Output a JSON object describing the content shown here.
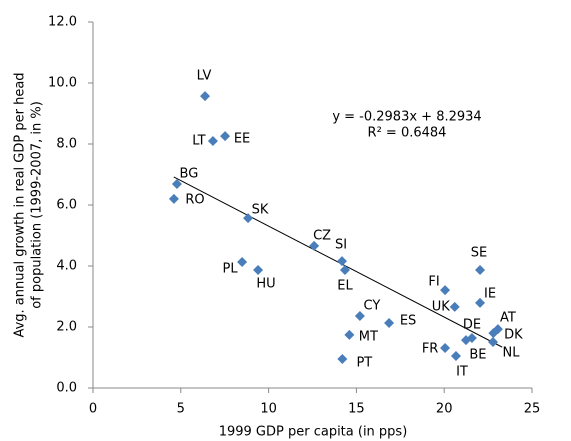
{
  "chart_data": {
    "type": "scatter",
    "x_label": "1999 GDP per capita (in pps)",
    "y_label": [
      "Avg. annual growth  in real GDP per head",
      "of population (1999-2007, in %)"
    ],
    "annotations": [
      "y = -0.2983x + 8.2934",
      "R² = 0.6484"
    ],
    "color": "#4a7ebb",
    "xlim": [
      0,
      25
    ],
    "ylim": [
      0,
      12
    ],
    "xticks": [
      0,
      5,
      10,
      15,
      20,
      25
    ],
    "yticks": [
      {
        "value": 0,
        "label": "0.0"
      },
      {
        "value": 2,
        "label": "2.0"
      },
      {
        "value": 4,
        "label": "4.0"
      },
      {
        "value": 6,
        "label": "6.0"
      },
      {
        "value": 8,
        "label": "8.0"
      },
      {
        "value": 10,
        "label": "10.0"
      },
      {
        "value": 12,
        "label": "12.0"
      }
    ],
    "labels": [
      "LV",
      "LT",
      "EE",
      "BG",
      "RO",
      "SK",
      "CZ",
      "SI",
      "EL",
      "PL",
      "HU",
      "CY",
      "MT",
      "PT",
      "ES",
      "FI",
      "SE",
      "IE",
      "UK",
      "DE",
      "BE",
      "FR",
      "IT",
      "AT",
      "DK",
      "NL"
    ],
    "x": [
      6.38,
      6.83,
      7.52,
      4.78,
      4.61,
      8.83,
      12.59,
      14.18,
      14.35,
      8.49,
      9.4,
      15.2,
      14.6,
      14.2,
      16.86,
      20.05,
      22.04,
      22.04,
      20.6,
      21.58,
      21.24,
      20.05,
      20.67,
      23.06,
      22.8,
      22.78
    ],
    "values": [
      9.57,
      8.1,
      8.26,
      6.69,
      6.2,
      5.57,
      4.66,
      4.16,
      3.87,
      4.13,
      3.87,
      2.36,
      1.74,
      0.95,
      2.13,
      3.21,
      3.87,
      2.79,
      2.66,
      1.64,
      1.57,
      1.31,
      1.05,
      1.93,
      1.8,
      1.51
    ],
    "trendline": {
      "x": [
        4.6,
        23.3
      ],
      "values": [
        6.92,
        1.34
      ]
    }
  }
}
